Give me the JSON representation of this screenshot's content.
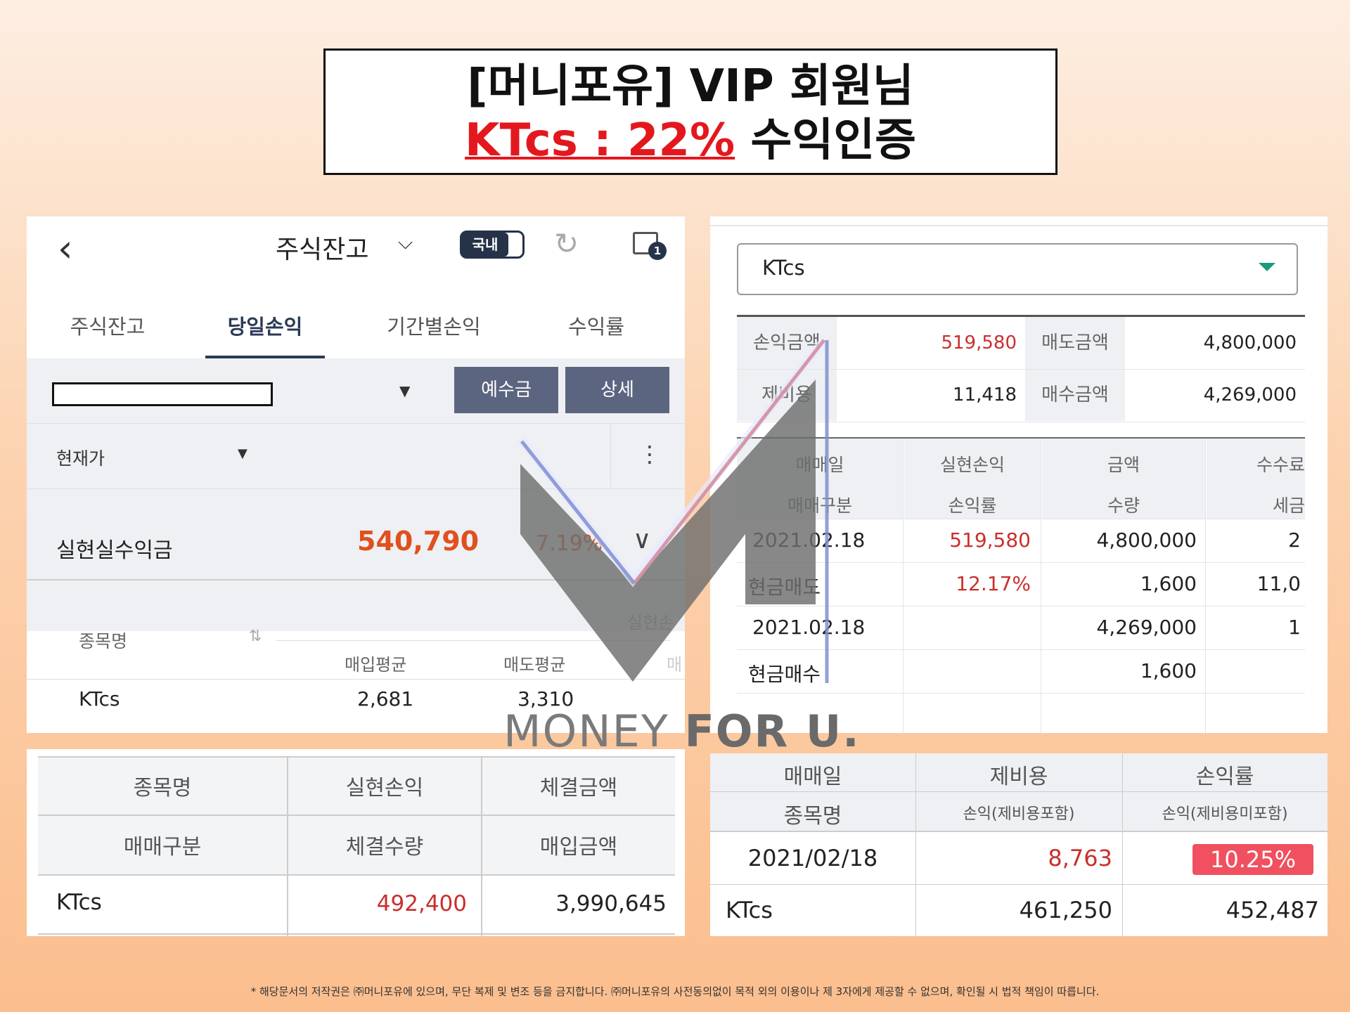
{
  "title": {
    "line1": "[머니포유] VIP 회원님",
    "line2_highlight": "KTcs : 22%",
    "line2_rest": "수익인증"
  },
  "panel1": {
    "back_icon": "chevron-left-icon",
    "screen_title": "주식잔고",
    "toggle_label": "국내",
    "window_badge": "1",
    "tabs": [
      "주식잔고",
      "당일손익",
      "기간별손익",
      "수익률"
    ],
    "active_tab": "당일손익",
    "buttons": {
      "deposit": "예수금",
      "detail": "상세"
    },
    "price_select": "현재가",
    "summary": {
      "label": "실현실수익금",
      "value": "540,790",
      "pct": "7.19%"
    },
    "list_header": {
      "name": "종목명",
      "buy_avg": "매입평균",
      "sell_avg": "매도평균",
      "realized": "실현손",
      "right_partial": "매"
    },
    "rows": [
      {
        "name": "KTcs",
        "buy_avg": "2,681",
        "sell_avg": "3,310"
      }
    ]
  },
  "panel2": {
    "selected": "KTcs",
    "summary": [
      {
        "label": "손익금액",
        "value": "519,580"
      },
      {
        "label": "매도금액",
        "value": "4,800,000"
      },
      {
        "label": "제비용",
        "value": "11,418"
      },
      {
        "label": "매수금액",
        "value": "4,269,000"
      }
    ],
    "headers_row1": [
      "매매일",
      "실현손익",
      "금액",
      "수수료"
    ],
    "headers_row2": [
      "매매구분",
      "손익률",
      "수량",
      "세금"
    ],
    "rows": [
      [
        "2021.02.18",
        "519,580",
        "4,800,000",
        "2"
      ],
      [
        "현금매도",
        "12.17%",
        "1,600",
        "11,0"
      ],
      [
        "2021.02.18",
        "",
        "4,269,000",
        "1"
      ],
      [
        "현금매수",
        "",
        "1,600",
        ""
      ]
    ]
  },
  "panel3": {
    "headers_row1": [
      "종목명",
      "실현손익",
      "체결금액"
    ],
    "headers_row2": [
      "매매구분",
      "체결수량",
      "매입금액"
    ],
    "row": [
      "KTcs",
      "492,400",
      "3,990,645"
    ]
  },
  "panel4": {
    "headers_row1": [
      "매매일",
      "제비용",
      "손익률"
    ],
    "headers_row2": [
      "종목명",
      "손익(제비용포함)",
      "손익(제비용미포함)"
    ],
    "row1": [
      "2021/02/18",
      "8,763",
      "10.25%"
    ],
    "row2": [
      "KTcs",
      "461,250",
      "452,487"
    ]
  },
  "watermark": {
    "part1": "MONEY ",
    "part2": "FOR U."
  },
  "footer": "* 해당문서의 저작권은 ㈜머니포유에 있으며, 무단 복제 및 변조 등을 금지합니다. ㈜머니포유의 사전동의없이 목적 외의 이용이나 제 3자에게 제공할 수 없으며, 확인될 시 법적 책임이 따릅니다.",
  "colors": {
    "accent_red": "#e3181e",
    "profit_orange": "#e0501f",
    "button": "#5c6580",
    "badge": "#f0505f"
  }
}
